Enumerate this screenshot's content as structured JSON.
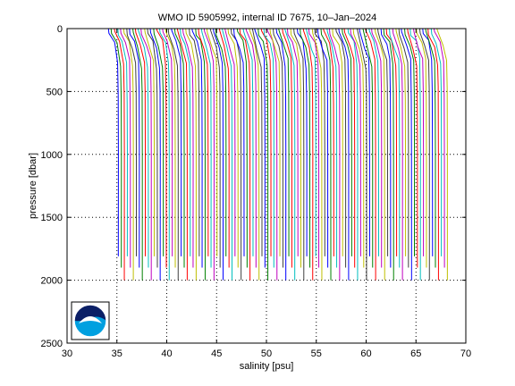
{
  "chart_data": {
    "type": "line",
    "title": "WMO ID 5905992, internal ID 7675, 10–Jan–2024",
    "xlabel": "salinity [psu]",
    "ylabel": "pressure [dbar]",
    "xlim": [
      30,
      70
    ],
    "ylim": [
      0,
      2500
    ],
    "y_reversed": true,
    "grid": true,
    "grid_style": "dotted",
    "xticks": [
      "30",
      "35",
      "40",
      "45",
      "50",
      "55",
      "60",
      "65",
      "70"
    ],
    "yticks": [
      "0",
      "500",
      "1000",
      "1500",
      "2000",
      "2500"
    ],
    "profiles": {
      "count": 111,
      "first_offset_psu": 34.2,
      "offset_step_psu": 0.3,
      "surface_salinity_psu": 0,
      "deep_salinity_psu": 0.95,
      "max_pressure_dbar": [
        1810,
        1900,
        2000
      ],
      "colors": [
        "#0000ff",
        "#008000",
        "#ff0000",
        "#00bfbf",
        "#bf00bf",
        "#bfbf00",
        "#404040"
      ]
    },
    "logo": "noaa-logo"
  }
}
